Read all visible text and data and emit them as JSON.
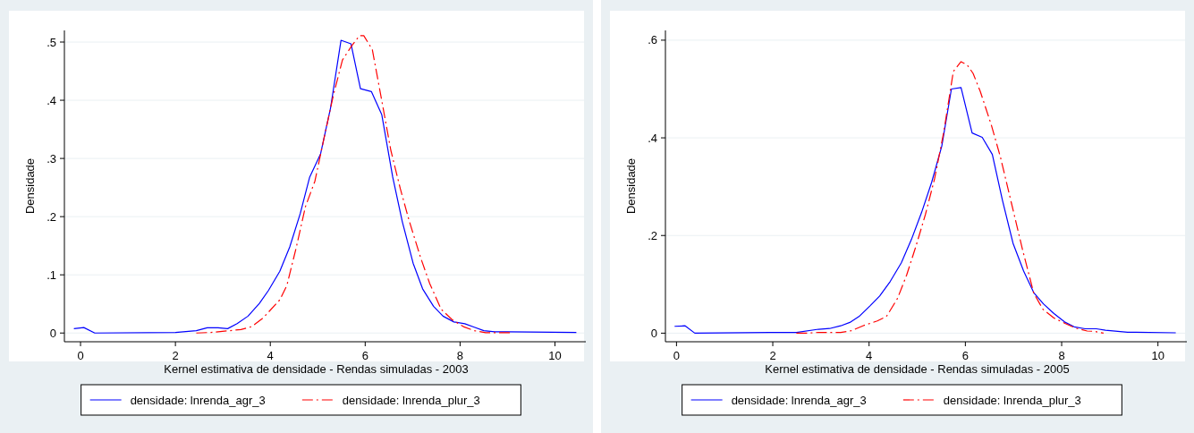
{
  "chart_data": [
    {
      "type": "line",
      "xlabel": "Kernel estimativa de densidade - Rendas simuladas - 2003",
      "ylabel": "Densidade",
      "xlim": [
        -0.34,
        10.65
      ],
      "ylim": [
        -0.015,
        0.52
      ],
      "xticks": [
        0,
        2,
        4,
        6,
        8,
        10
      ],
      "yticks": [
        {
          "value": 0,
          "label": "0"
        },
        {
          "value": 0.1,
          "label": ".1"
        },
        {
          "value": 0.2,
          "label": ".2"
        },
        {
          "value": 0.3,
          "label": ".3"
        },
        {
          "value": 0.4,
          "label": ".4"
        },
        {
          "value": 0.5,
          "label": ".5"
        }
      ],
      "grid": "y",
      "legend": "bottom",
      "series": [
        {
          "name": "densidade: lnrenda_agr_3",
          "color": "#0000ff",
          "line_style": "solid",
          "x": [
            -0.14,
            0.07,
            0.3,
            2.0,
            2.44,
            2.67,
            2.9,
            3.1,
            3.3,
            3.53,
            3.77,
            3.96,
            4.2,
            4.41,
            4.63,
            4.83,
            5.06,
            5.27,
            5.49,
            5.7,
            5.9,
            6.13,
            6.35,
            6.58,
            6.78,
            7.01,
            7.21,
            7.44,
            7.64,
            7.87,
            8.1,
            8.3,
            8.5,
            8.73,
            9.0,
            10.45
          ],
          "values": [
            0.0075,
            0.0094,
            0,
            0.001,
            0.004,
            0.009,
            0.009,
            0.0075,
            0.016,
            0.029,
            0.051,
            0.073,
            0.106,
            0.148,
            0.205,
            0.268,
            0.308,
            0.387,
            0.503,
            0.497,
            0.42,
            0.415,
            0.375,
            0.268,
            0.192,
            0.12,
            0.076,
            0.046,
            0.029,
            0.019,
            0.016,
            0.01,
            0.004,
            0.002,
            0.002,
            0.001
          ]
        },
        {
          "name": "densidade: lnrenda_plur_3",
          "color": "#ff0000",
          "line_style": "dashed",
          "x": [
            2.44,
            2.75,
            3.14,
            3.38,
            3.61,
            3.85,
            4.2,
            4.35,
            4.55,
            4.74,
            4.94,
            5.13,
            5.33,
            5.52,
            5.72,
            5.88,
            5.97,
            6.15,
            6.35,
            6.54,
            6.74,
            6.93,
            7.17,
            7.36,
            7.6,
            7.83,
            8.07,
            8.3,
            8.54,
            9.08
          ],
          "values": [
            0,
            0.001,
            0.004,
            0.006,
            0.011,
            0.026,
            0.057,
            0.082,
            0.148,
            0.217,
            0.261,
            0.334,
            0.409,
            0.469,
            0.494,
            0.511,
            0.511,
            0.487,
            0.399,
            0.314,
            0.248,
            0.192,
            0.129,
            0.085,
            0.041,
            0.023,
            0.011,
            0.004,
            0.0006,
            0.0006
          ]
        }
      ]
    },
    {
      "type": "line",
      "xlabel": "Kernel estimativa de densidade - Rendas simuladas - 2005",
      "ylabel": "Densidade",
      "xlim": [
        -0.23,
        10.6
      ],
      "ylim": [
        -0.0176,
        0.62
      ],
      "xticks": [
        0,
        2,
        4,
        6,
        8,
        10
      ],
      "yticks": [
        {
          "value": 0,
          "label": "0"
        },
        {
          "value": 0.2,
          "label": ".2"
        },
        {
          "value": 0.4,
          "label": ".4"
        },
        {
          "value": 0.6,
          "label": ".6"
        }
      ],
      "grid": "y",
      "legend": "bottom",
      "series": [
        {
          "name": "densidade: lnrenda_agr_3",
          "color": "#0000ff",
          "line_style": "solid",
          "x": [
            -0.04,
            0.18,
            0.38,
            1.95,
            2.49,
            2.95,
            3.18,
            3.41,
            3.6,
            3.79,
            4.02,
            4.22,
            4.44,
            4.67,
            4.88,
            5.09,
            5.3,
            5.51,
            5.71,
            5.91,
            6.14,
            6.35,
            6.56,
            6.77,
            6.99,
            7.21,
            7.42,
            7.62,
            7.84,
            8.06,
            8.26,
            8.49,
            8.72,
            8.91,
            9.37,
            10.37
          ],
          "values": [
            0.014,
            0.015,
            0,
            0.0015,
            0.0015,
            0.008,
            0.0095,
            0.015,
            0.022,
            0.034,
            0.056,
            0.076,
            0.106,
            0.144,
            0.192,
            0.247,
            0.309,
            0.383,
            0.5,
            0.503,
            0.41,
            0.401,
            0.366,
            0.272,
            0.184,
            0.127,
            0.083,
            0.06,
            0.04,
            0.023,
            0.013,
            0.009,
            0.009,
            0.006,
            0.002,
            0.0007
          ]
        },
        {
          "name": "densidade: lnrenda_plur_3",
          "color": "#ff0000",
          "line_style": "dashed",
          "x": [
            2.49,
            2.72,
            2.95,
            3.41,
            3.63,
            3.87,
            4.17,
            4.36,
            4.59,
            4.78,
            4.97,
            5.17,
            5.36,
            5.55,
            5.75,
            5.91,
            6.04,
            6.16,
            6.31,
            6.54,
            6.73,
            6.96,
            7.19,
            7.42,
            7.61,
            7.84,
            8.07,
            8.3,
            8.53,
            8.68,
            8.87
          ],
          "values": [
            0,
            0,
            0.0015,
            0.0015,
            0.005,
            0.015,
            0.025,
            0.034,
            0.071,
            0.119,
            0.177,
            0.243,
            0.316,
            0.411,
            0.536,
            0.556,
            0.549,
            0.532,
            0.495,
            0.426,
            0.36,
            0.265,
            0.17,
            0.082,
            0.049,
            0.031,
            0.02,
            0.01,
            0.0044,
            0.0037,
            0
          ]
        }
      ]
    }
  ]
}
